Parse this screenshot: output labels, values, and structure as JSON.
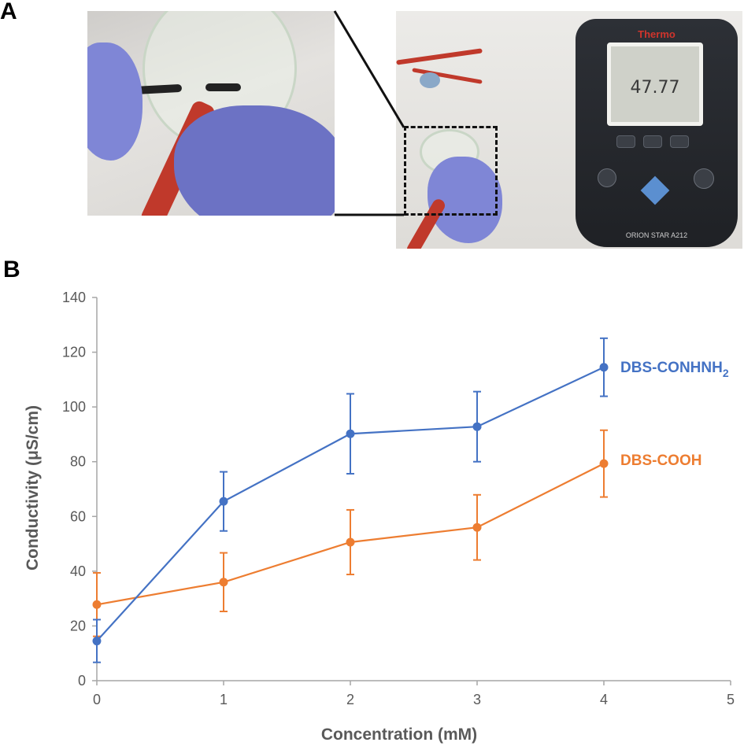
{
  "panels": {
    "a_label": "A",
    "b_label": "B"
  },
  "photo": {
    "meter_brand": "Thermo",
    "meter_reading": "47.77",
    "meter_model": "ORION STAR A212",
    "colors": {
      "glove": "#7f86d6",
      "meter": "#2d3036",
      "wire": "#c0392b"
    }
  },
  "chart_data": {
    "type": "line",
    "xlabel": "Concentration (mM)",
    "ylabel": "Conductivity (μS/cm)",
    "xlim": [
      0,
      5
    ],
    "ylim": [
      0,
      140
    ],
    "xticks": [
      0,
      1,
      2,
      3,
      4,
      5
    ],
    "yticks": [
      0,
      20,
      40,
      60,
      80,
      100,
      120,
      140
    ],
    "grid": false,
    "series": [
      {
        "name": "DBS-CONHNH",
        "name_subscript": "2",
        "color": "#4472c4",
        "x": [
          0,
          1,
          2,
          3,
          4
        ],
        "y": [
          14.5,
          65.5,
          90.2,
          92.8,
          114.5
        ],
        "error": [
          7.8,
          10.8,
          14.6,
          12.8,
          10.6
        ]
      },
      {
        "name": "DBS-COOH",
        "color": "#ed7d31",
        "x": [
          0,
          1,
          2,
          3,
          4
        ],
        "y": [
          27.8,
          36.0,
          50.6,
          56.0,
          79.3
        ],
        "error": [
          11.6,
          10.7,
          11.8,
          11.9,
          12.2
        ]
      }
    ]
  }
}
